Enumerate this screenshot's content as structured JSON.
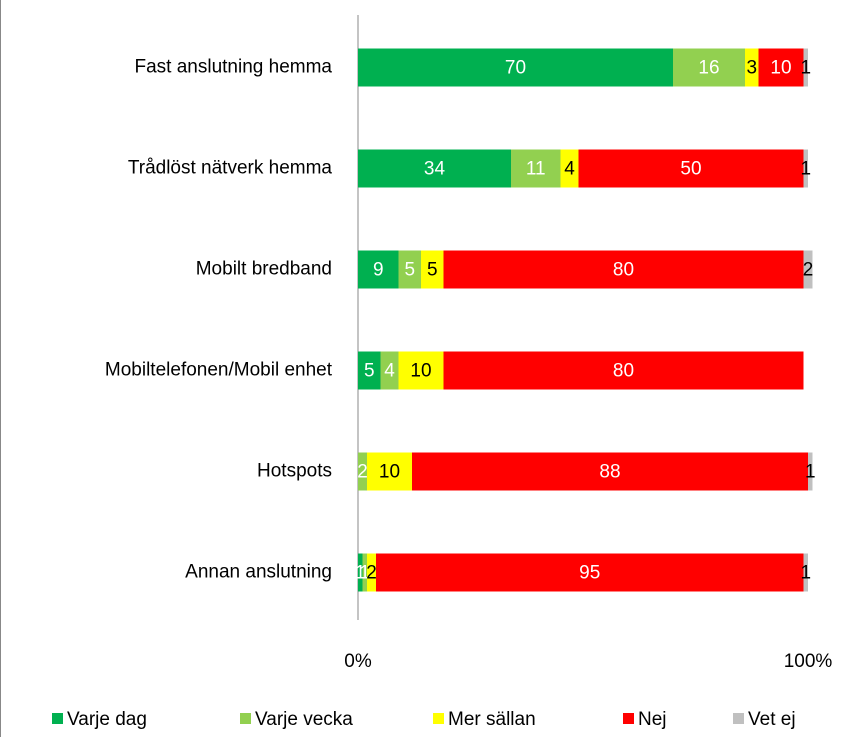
{
  "chart_data": {
    "type": "stacked_barh",
    "categories": [
      "Fast anslutning hemma",
      "Trådlöst nätverk hemma",
      "Mobilt bredband",
      "Mobiltelefonen/Mobil enhet",
      "Hotspots",
      "Annan anslutning"
    ],
    "series": [
      {
        "name": "Varje dag",
        "color": "#00b050",
        "values": [
          70,
          34,
          9,
          5,
          null,
          1
        ]
      },
      {
        "name": "Varje vecka",
        "color": "#92d050",
        "values": [
          16,
          11,
          5,
          4,
          2,
          1
        ]
      },
      {
        "name": "Mer sällan",
        "color": "#ffff00",
        "values": [
          3,
          4,
          5,
          10,
          10,
          2
        ]
      },
      {
        "name": "Nej",
        "color": "#ff0000",
        "values": [
          10,
          50,
          80,
          80,
          88,
          95
        ]
      },
      {
        "name": "Vet ej",
        "color": "#c0c0c0",
        "values": [
          1,
          1,
          2,
          null,
          1,
          1
        ]
      }
    ],
    "xlim": [
      0,
      100
    ],
    "xticks": [
      {
        "value": 0,
        "label": "0%"
      },
      {
        "value": 100,
        "label": "100%"
      }
    ],
    "legend": "bottom"
  }
}
